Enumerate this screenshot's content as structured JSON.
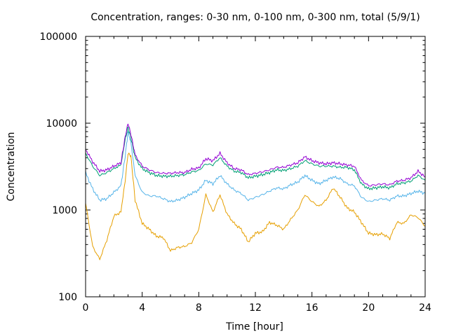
{
  "chart_data": {
    "type": "line",
    "title": "Concentration, ranges: 0-30 nm, 0-100 nm, 0-300 nm, total (5/9/1)",
    "xlabel": "Time [hour]",
    "ylabel": "Concentration",
    "xlim": [
      0,
      24
    ],
    "ylim": [
      100,
      100000
    ],
    "yscale": "log",
    "xticks": [
      0,
      4,
      8,
      12,
      16,
      20,
      24
    ],
    "xtick_labels": [
      "0",
      "4",
      "8",
      "12",
      "16",
      "20",
      "24"
    ],
    "yticks": [
      100,
      1000,
      10000,
      100000
    ],
    "ytick_labels": [
      "100",
      "1000",
      "10000",
      "100000"
    ],
    "grid": false,
    "x": [
      0,
      0.5,
      1,
      1.5,
      2,
      2.5,
      2.8,
      3,
      3.2,
      3.5,
      4,
      4.5,
      5,
      5.5,
      6,
      6.5,
      7,
      7.5,
      8,
      8.5,
      9,
      9.5,
      10,
      10.5,
      11,
      11.5,
      12,
      12.5,
      13,
      13.5,
      14,
      14.5,
      15,
      15.5,
      16,
      16.5,
      17,
      17.5,
      18,
      18.5,
      19,
      19.5,
      20,
      20.5,
      21,
      21.5,
      22,
      22.5,
      23,
      23.5,
      24
    ],
    "series": [
      {
        "color": "#e69f00",
        "values": [
          1200,
          380,
          270,
          450,
          850,
          950,
          2200,
          4500,
          4200,
          1300,
          700,
          600,
          500,
          480,
          340,
          370,
          380,
          420,
          600,
          1500,
          950,
          1500,
          900,
          700,
          600,
          430,
          540,
          560,
          720,
          670,
          600,
          780,
          1000,
          1500,
          1250,
          1100,
          1300,
          1800,
          1400,
          1050,
          950,
          720,
          540,
          520,
          530,
          470,
          720,
          700,
          880,
          820,
          650
        ]
      },
      {
        "color": "#56b4e9",
        "values": [
          2700,
          1750,
          1300,
          1350,
          1600,
          1900,
          4200,
          8000,
          6000,
          2500,
          1600,
          1450,
          1450,
          1350,
          1250,
          1300,
          1400,
          1550,
          1700,
          2200,
          2000,
          2500,
          2000,
          1700,
          1550,
          1300,
          1400,
          1500,
          1650,
          1800,
          1750,
          1950,
          2100,
          2500,
          2200,
          2000,
          2200,
          2400,
          2300,
          2000,
          1900,
          1400,
          1250,
          1300,
          1350,
          1300,
          1450,
          1450,
          1550,
          1650,
          1550
        ]
      },
      {
        "color": "#009e73",
        "values": [
          4500,
          3200,
          2500,
          2700,
          3000,
          3300,
          6500,
          9000,
          6800,
          4000,
          3000,
          2700,
          2500,
          2450,
          2450,
          2500,
          2550,
          2750,
          2850,
          3400,
          3300,
          4000,
          3200,
          2800,
          2700,
          2350,
          2450,
          2550,
          2700,
          2900,
          2850,
          3000,
          3200,
          3700,
          3400,
          3200,
          3200,
          3200,
          3100,
          3100,
          2900,
          2000,
          1750,
          1800,
          1850,
          1800,
          2000,
          2050,
          2150,
          2500,
          2200
        ]
      },
      {
        "color": "#9400d3",
        "values": [
          5000,
          3600,
          2800,
          2900,
          3200,
          3500,
          7000,
          10000,
          7500,
          4300,
          3200,
          2900,
          2700,
          2650,
          2650,
          2700,
          2700,
          2950,
          3050,
          3900,
          3700,
          4500,
          3500,
          3000,
          2900,
          2550,
          2650,
          2750,
          2900,
          3100,
          3100,
          3300,
          3500,
          4100,
          3700,
          3500,
          3400,
          3500,
          3400,
          3300,
          3200,
          2200,
          1900,
          1950,
          2000,
          1950,
          2150,
          2200,
          2350,
          2800,
          2400
        ]
      }
    ]
  }
}
